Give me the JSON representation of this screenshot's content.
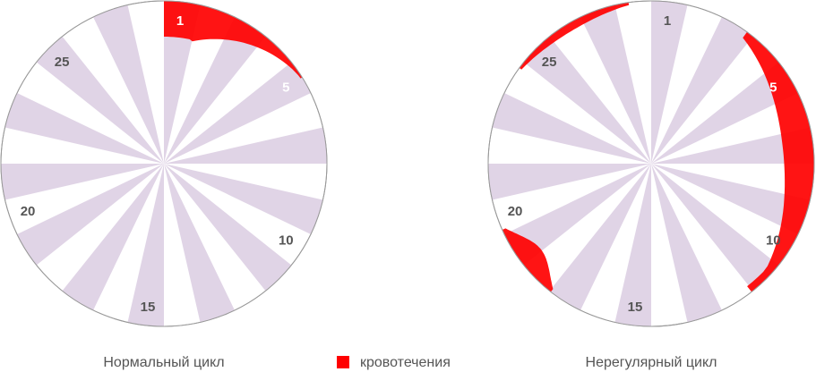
{
  "diagrams": [
    {
      "title": "Нормальный цикл",
      "day_labels": [
        1,
        5,
        10,
        15,
        20,
        25
      ]
    },
    {
      "title": "Нерегулярный цикл",
      "day_labels": [
        1,
        5,
        10,
        15,
        20,
        25
      ]
    }
  ],
  "legend": {
    "label": "кровотечения",
    "color": "#ff0000"
  }
}
